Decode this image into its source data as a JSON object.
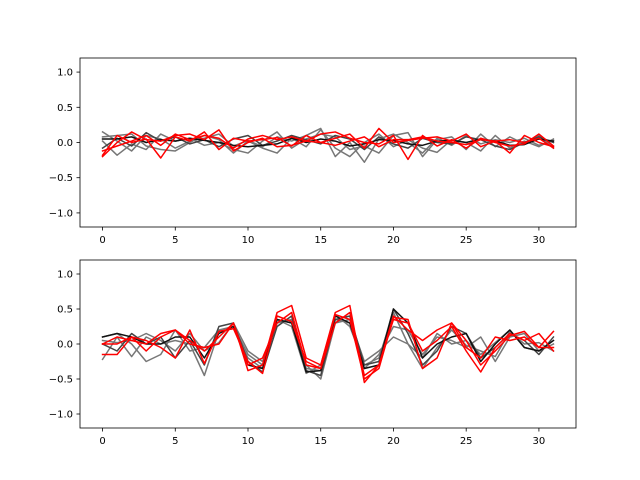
{
  "chart_data": [
    {
      "type": "line",
      "title": "",
      "xlabel": "",
      "ylabel": "",
      "xlim": [
        -1.55,
        32.55
      ],
      "ylim": [
        -1.2,
        1.2
      ],
      "xticks": [
        0,
        5,
        10,
        15,
        20,
        25,
        30
      ],
      "xtick_labels": [
        "0",
        "5",
        "10",
        "15",
        "20",
        "25",
        "30"
      ],
      "yticks": [
        1.0,
        0.5,
        0.0,
        -0.5,
        -1.0
      ],
      "ytick_labels": [
        "1.0",
        "0.5",
        "0.0",
        "−0.5",
        "−1.0"
      ],
      "grid": false,
      "legend": "none",
      "x": [
        0,
        1,
        2,
        3,
        4,
        5,
        6,
        7,
        8,
        9,
        10,
        11,
        12,
        13,
        14,
        15,
        16,
        17,
        18,
        19,
        20,
        21,
        22,
        23,
        24,
        25,
        26,
        27,
        28,
        29,
        30,
        31
      ],
      "series": [
        {
          "color": "#777777",
          "values": [
            0.15,
            0.02,
            -0.12,
            0.1,
            0.05,
            -0.08,
            0.02,
            0.06,
            0.12,
            -0.05,
            0.03,
            -0.06,
            0.08,
            0.02,
            0.1,
            0.2,
            -0.2,
            0.0,
            -0.28,
            0.05,
            0.12,
            0.0,
            -0.15,
            0.06,
            -0.04,
            0.1,
            -0.02,
            0.04,
            0.0,
            0.06,
            -0.04,
            0.03
          ]
        },
        {
          "color": "#777777",
          "values": [
            0.02,
            -0.18,
            -0.02,
            -0.1,
            0.12,
            0.02,
            0.06,
            -0.04,
            0.0,
            -0.1,
            -0.15,
            0.02,
            0.15,
            -0.08,
            0.05,
            0.12,
            0.08,
            -0.1,
            -0.05,
            -0.15,
            0.1,
            0.14,
            -0.2,
            0.04,
            0.08,
            -0.1,
            0.12,
            -0.06,
            0.08,
            -0.02,
            0.1,
            -0.08
          ]
        },
        {
          "color": "#777777",
          "values": [
            0.08,
            0.1,
            0.12,
            -0.05,
            -0.1,
            -0.12,
            0.0,
            0.1,
            0.04,
            -0.15,
            0.02,
            -0.08,
            -0.15,
            0.06,
            -0.06,
            0.18,
            -0.08,
            -0.2,
            0.0,
            0.12,
            -0.06,
            0.04,
            -0.08,
            -0.14,
            0.04,
            0.0,
            -0.12,
            0.1,
            -0.08,
            0.02,
            -0.06,
            0.05
          ]
        },
        {
          "color": "#444444",
          "values": [
            -0.08,
            0.06,
            -0.05,
            0.14,
            0.02,
            0.08,
            -0.02,
            0.04,
            -0.06,
            0.05,
            0.1,
            -0.04,
            0.02,
            0.1,
            0.04,
            -0.02,
            0.1,
            0.05,
            -0.1,
            0.08,
            -0.02,
            -0.08,
            0.06,
            0.0,
            -0.02,
            0.08,
            0.04,
            -0.05,
            -0.1,
            0.0,
            0.08,
            0.0
          ]
        },
        {
          "color": "#111111",
          "values": [
            0.05,
            0.05,
            0.08,
            0.0,
            0.04,
            0.02,
            0.06,
            0.03,
            0.0,
            -0.04,
            -0.06,
            -0.04,
            -0.02,
            0.06,
            0.0,
            0.05,
            0.02,
            -0.05,
            -0.02,
            0.04,
            0.03,
            -0.02,
            -0.04,
            0.02,
            0.03,
            0.0,
            0.05,
            0.02,
            -0.04,
            -0.03,
            0.05,
            0.02
          ]
        },
        {
          "color": "#ff0000",
          "values": [
            -0.18,
            0.1,
            0.0,
            0.05,
            -0.22,
            0.08,
            0.02,
            0.15,
            -0.1,
            0.06,
            0.02,
            0.04,
            0.07,
            -0.05,
            0.1,
            0.0,
            0.06,
            0.12,
            -0.08,
            0.2,
            0.0,
            0.03,
            0.06,
            0.08,
            0.02,
            0.12,
            -0.06,
            0.02,
            -0.15,
            0.1,
            0.0,
            -0.06
          ]
        },
        {
          "color": "#ff0000",
          "values": [
            -0.2,
            0.0,
            0.15,
            0.04,
            0.02,
            0.1,
            0.12,
            0.04,
            0.18,
            -0.12,
            0.0,
            0.06,
            -0.06,
            -0.04,
            0.02,
            0.12,
            0.15,
            0.06,
            0.0,
            -0.02,
            0.1,
            -0.24,
            0.1,
            -0.05,
            0.04,
            -0.08,
            0.06,
            0.0,
            -0.05,
            -0.02,
            0.12,
            -0.05
          ]
        },
        {
          "color": "#ff0000",
          "values": [
            -0.12,
            -0.05,
            0.02,
            0.1,
            -0.04,
            0.12,
            0.04,
            0.1,
            0.06,
            -0.08,
            0.05,
            0.1,
            0.04,
            0.08,
            0.02,
            0.0,
            -0.04,
            0.02,
            0.08,
            -0.06,
            0.04,
            0.04,
            0.08,
            0.02,
            0.0,
            -0.03,
            0.04,
            0.02,
            0.04,
            0.0,
            0.06,
            -0.08
          ]
        }
      ]
    },
    {
      "type": "line",
      "title": "",
      "xlabel": "",
      "ylabel": "",
      "xlim": [
        -1.55,
        32.55
      ],
      "ylim": [
        -1.2,
        1.2
      ],
      "xticks": [
        0,
        5,
        10,
        15,
        20,
        25,
        30
      ],
      "xtick_labels": [
        "0",
        "5",
        "10",
        "15",
        "20",
        "25",
        "30"
      ],
      "yticks": [
        1.0,
        0.5,
        0.0,
        -0.5,
        -1.0
      ],
      "ytick_labels": [
        "1.0",
        "0.5",
        "0.0",
        "−0.5",
        "−1.0"
      ],
      "grid": false,
      "legend": "none",
      "x": [
        0,
        1,
        2,
        3,
        4,
        5,
        6,
        7,
        8,
        9,
        10,
        11,
        12,
        13,
        14,
        15,
        16,
        17,
        18,
        19,
        20,
        21,
        22,
        23,
        24,
        25,
        26,
        27,
        28,
        29,
        30,
        31
      ],
      "series": [
        {
          "color": "#777777",
          "values": [
            -0.22,
            0.1,
            -0.18,
            0.1,
            0.0,
            0.05,
            0.0,
            -0.45,
            0.18,
            0.22,
            -0.2,
            -0.35,
            0.35,
            0.25,
            -0.42,
            -0.3,
            0.42,
            0.25,
            -0.3,
            -0.2,
            0.45,
            0.0,
            -0.35,
            -0.05,
            0.2,
            -0.02,
            -0.1,
            -0.18,
            0.18,
            0.0,
            0.02,
            -0.1
          ]
        },
        {
          "color": "#777777",
          "values": [
            0.1,
            0.15,
            0.0,
            -0.25,
            -0.15,
            0.2,
            -0.1,
            -0.05,
            0.2,
            0.25,
            -0.15,
            -0.3,
            0.3,
            0.35,
            -0.35,
            -0.38,
            0.35,
            0.3,
            -0.35,
            -0.15,
            0.25,
            0.2,
            -0.15,
            0.1,
            0.05,
            -0.05,
            0.1,
            -0.25,
            0.1,
            0.15,
            -0.1,
            0.05
          ]
        },
        {
          "color": "#777777",
          "values": [
            0.05,
            0.02,
            0.05,
            0.15,
            0.05,
            -0.1,
            0.15,
            -0.1,
            0.02,
            0.3,
            -0.1,
            -0.25,
            0.35,
            0.3,
            -0.3,
            -0.5,
            0.3,
            0.35,
            -0.25,
            -0.1,
            0.1,
            0.0,
            -0.2,
            0.15,
            0.0,
            0.05,
            -0.15,
            0.02,
            0.2,
            -0.05,
            -0.1,
            0.0
          ]
        },
        {
          "color": "#444444",
          "values": [
            0.0,
            -0.1,
            0.15,
            0.0,
            0.1,
            -0.2,
            0.05,
            -0.3,
            0.25,
            0.3,
            -0.25,
            -0.4,
            0.25,
            0.4,
            -0.38,
            -0.45,
            0.35,
            0.4,
            -0.3,
            -0.25,
            0.5,
            0.15,
            -0.3,
            -0.1,
            0.25,
            0.15,
            -0.2,
            -0.05,
            0.15,
            0.05,
            -0.15,
            0.1
          ]
        },
        {
          "color": "#111111",
          "values": [
            0.1,
            0.15,
            0.1,
            0.0,
            0.0,
            0.1,
            0.1,
            -0.2,
            0.15,
            0.25,
            -0.3,
            -0.35,
            0.35,
            0.3,
            -0.4,
            -0.38,
            0.4,
            0.3,
            -0.35,
            -0.3,
            0.5,
            0.3,
            -0.2,
            0.0,
            0.1,
            0.15,
            -0.25,
            0.0,
            0.2,
            -0.05,
            -0.1,
            0.05
          ]
        },
        {
          "color": "#ff0000",
          "values": [
            0.0,
            0.1,
            0.05,
            0.0,
            0.15,
            0.2,
            0.05,
            -0.1,
            0.1,
            0.3,
            -0.38,
            -0.3,
            0.45,
            0.55,
            -0.2,
            -0.3,
            0.45,
            0.55,
            -0.55,
            -0.3,
            0.35,
            0.3,
            -0.1,
            0.05,
            0.25,
            -0.1,
            -0.4,
            -0.05,
            0.15,
            0.05,
            0.15,
            -0.1
          ]
        },
        {
          "color": "#ff0000",
          "values": [
            -0.15,
            -0.15,
            0.1,
            0.05,
            -0.05,
            -0.2,
            0.2,
            -0.28,
            0.18,
            0.22,
            -0.25,
            -0.42,
            0.4,
            0.32,
            -0.25,
            -0.35,
            0.42,
            0.35,
            -0.5,
            -0.35,
            0.38,
            0.35,
            -0.35,
            -0.2,
            0.3,
            0.05,
            -0.3,
            -0.1,
            0.12,
            0.18,
            -0.05,
            0.18
          ]
        },
        {
          "color": "#ff0000",
          "values": [
            0.0,
            0.0,
            0.1,
            -0.1,
            0.1,
            0.2,
            0.0,
            -0.05,
            0.0,
            0.3,
            -0.3,
            -0.2,
            0.3,
            0.45,
            -0.3,
            -0.35,
            0.3,
            0.45,
            -0.45,
            -0.3,
            0.4,
            0.2,
            0.05,
            0.2,
            0.3,
            -0.05,
            -0.2,
            0.1,
            0.05,
            0.1,
            -0.05,
            -0.05
          ]
        }
      ]
    }
  ]
}
